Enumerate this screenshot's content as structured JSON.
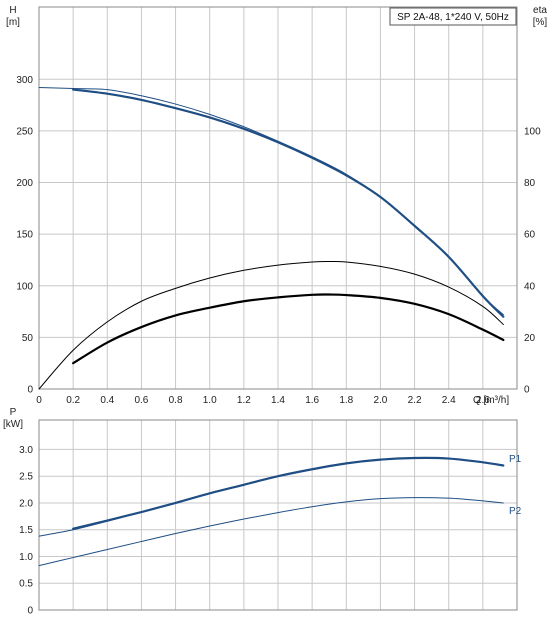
{
  "title": "SP 2A-48, 1*240 V, 50Hz",
  "colors": {
    "blue": "#1f4e85",
    "black": "#000000",
    "grid": "#c8c8c8",
    "frame": "#8a8a8a"
  },
  "chart_data": [
    {
      "type": "line",
      "name": "head-efficiency",
      "x_label": "Q [m³/h]",
      "x_ticks": [
        "0",
        "0.2",
        "0.4",
        "0.6",
        "0.8",
        "1.0",
        "1.2",
        "1.4",
        "1.6",
        "1.8",
        "2.0",
        "2.2",
        "2.4",
        "2.6"
      ],
      "xlim": [
        0,
        2.8
      ],
      "y_label_line1": "H",
      "y_label_line2": "[m]",
      "y_ticks": [
        "0",
        "50",
        "100",
        "150",
        "200",
        "250",
        "300"
      ],
      "ylim": [
        0,
        370
      ],
      "y2_label_line1": "eta",
      "y2_label_line2": "[%]",
      "y2_ticks": [
        "0",
        "20",
        "40",
        "60",
        "80",
        "100"
      ],
      "y2lim": [
        0,
        148
      ],
      "grid": true,
      "series": [
        {
          "id": "H-full",
          "axis": "left",
          "x": [
            0,
            0.2,
            0.4,
            0.6,
            0.8,
            1.0,
            1.2,
            1.4,
            1.6,
            1.8,
            2.0,
            2.2,
            2.4,
            2.6,
            2.72
          ],
          "y": [
            292,
            291,
            290,
            284,
            276,
            266,
            254,
            240,
            225,
            208,
            186,
            158,
            128,
            90,
            72
          ]
        },
        {
          "id": "H-op",
          "axis": "left",
          "x": [
            0.2,
            0.4,
            0.6,
            0.8,
            1.0,
            1.2,
            1.4,
            1.6,
            1.8,
            2.0,
            2.2,
            2.4,
            2.6,
            2.72
          ],
          "y": [
            290,
            286,
            280,
            272,
            263,
            252,
            239,
            224,
            207,
            186,
            158,
            128,
            90,
            70
          ]
        },
        {
          "id": "eta-full",
          "axis": "right",
          "x": [
            0,
            0.2,
            0.4,
            0.6,
            0.8,
            1.0,
            1.2,
            1.4,
            1.6,
            1.7,
            1.8,
            2.0,
            2.2,
            2.4,
            2.6,
            2.72
          ],
          "y": [
            0,
            15,
            26,
            34,
            39,
            43,
            46,
            48,
            49.2,
            49.4,
            49.2,
            47.5,
            44.5,
            39.5,
            32,
            25
          ]
        },
        {
          "id": "eta-op",
          "axis": "right",
          "x": [
            0.2,
            0.4,
            0.6,
            0.8,
            1.0,
            1.2,
            1.4,
            1.6,
            1.7,
            1.8,
            2.0,
            2.2,
            2.4,
            2.6,
            2.72
          ],
          "y": [
            10,
            18,
            24,
            28.5,
            31.5,
            34,
            35.5,
            36.5,
            36.6,
            36.4,
            35.3,
            33,
            29,
            23,
            19
          ]
        }
      ]
    },
    {
      "type": "line",
      "name": "power",
      "xlim": [
        0,
        2.8
      ],
      "y_label_line1": "P",
      "y_label_line2": "[kW]",
      "y_ticks": [
        "0",
        "0.5",
        "1.0",
        "1.5",
        "2.0",
        "2.5",
        "3.0"
      ],
      "ylim": [
        0,
        3.55
      ],
      "grid": true,
      "series": [
        {
          "id": "P1-full",
          "name": "P1",
          "x": [
            0,
            0.2,
            0.4,
            0.6,
            0.8,
            1.0,
            1.2,
            1.4,
            1.6,
            1.8,
            2.0,
            2.2,
            2.4,
            2.6,
            2.72
          ],
          "y": [
            1.38,
            1.5,
            1.66,
            1.83,
            2.0,
            2.18,
            2.34,
            2.5,
            2.63,
            2.74,
            2.81,
            2.84,
            2.83,
            2.76,
            2.7
          ]
        },
        {
          "id": "P1-op",
          "x": [
            0.2,
            0.4,
            0.6,
            0.8,
            1.0,
            1.2,
            1.4,
            1.6,
            1.8,
            2.0,
            2.2,
            2.4,
            2.6,
            2.72
          ],
          "y": [
            1.52,
            1.67,
            1.83,
            2.0,
            2.18,
            2.34,
            2.5,
            2.63,
            2.74,
            2.81,
            2.84,
            2.83,
            2.76,
            2.7
          ]
        },
        {
          "id": "P2",
          "name": "P2",
          "x": [
            0,
            0.2,
            0.4,
            0.6,
            0.8,
            1.0,
            1.2,
            1.4,
            1.6,
            1.8,
            2.0,
            2.2,
            2.4,
            2.6,
            2.72
          ],
          "y": [
            0.83,
            0.98,
            1.13,
            1.28,
            1.43,
            1.57,
            1.7,
            1.82,
            1.93,
            2.02,
            2.08,
            2.1,
            2.09,
            2.04,
            2.0
          ]
        }
      ]
    }
  ]
}
